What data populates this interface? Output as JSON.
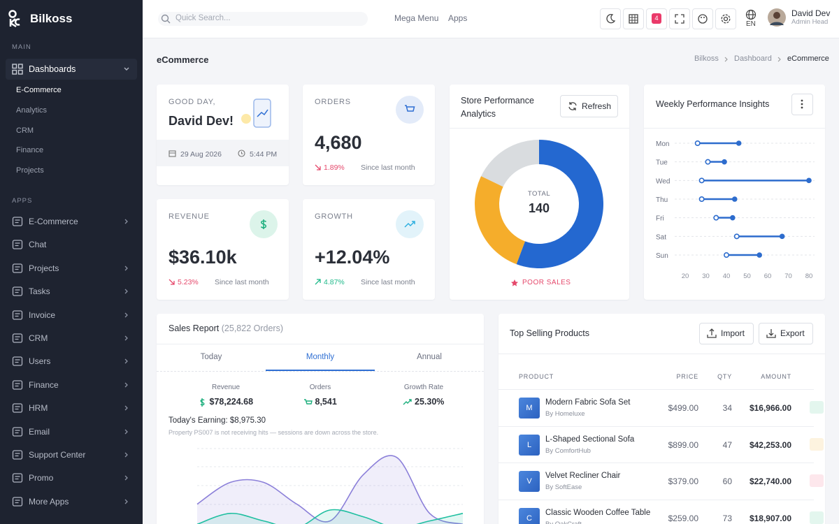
{
  "brand": "Bilkoss",
  "sidebar": {
    "main_label": "MAIN",
    "dashboards": "Dashboards",
    "dashboard_items": [
      "E-Commerce",
      "Analytics",
      "CRM",
      "Finance",
      "Projects"
    ],
    "apps_label": "APPS",
    "apps": [
      "E-Commerce",
      "Chat",
      "Projects",
      "Tasks",
      "Invoice",
      "CRM",
      "Users",
      "Finance",
      "HRM",
      "Email",
      "Support Center",
      "Promo",
      "More Apps"
    ]
  },
  "topbar": {
    "search": "Quick Search...",
    "links": [
      "Mega Menu",
      "Apps"
    ],
    "notifications": "4",
    "language": "EN",
    "user_name": "David Dev",
    "user_role": "Admin Head"
  },
  "page": {
    "title": "eCommerce",
    "breadcrumb": [
      "Bilkoss",
      "Dashboard",
      "eCommerce"
    ]
  },
  "greeting": {
    "salutation": "GOOD DAY,",
    "name": "David Dev!",
    "date": "29 Aug 2026",
    "time": "5:44 PM"
  },
  "stats": [
    {
      "label": "ORDERS",
      "value": "4,680",
      "change": "1.89%",
      "note": "Since last month",
      "trend": "down",
      "color": "#2f6fd3",
      "bg": "#e3ebf9"
    },
    {
      "label": "REVENUE",
      "value": "$36.10k",
      "change": "5.23%",
      "note": "Since last month",
      "trend": "down",
      "color": "#1bae7c",
      "bg": "#dcf4ea"
    },
    {
      "label": "GROWTH",
      "value": "+12.04%",
      "change": "4.87%",
      "note": "Since last month",
      "trend": "up",
      "color": "#2fb0e0",
      "bg": "#e2f3fa"
    }
  ],
  "store_performance": {
    "type": "donut",
    "title": "Store Performance Analytics",
    "button": "Refresh",
    "total_label": "TOTAL",
    "total": 140,
    "status": "POOR SALES",
    "segments": [
      {
        "value": 78,
        "color": "#2468d0"
      },
      {
        "value": 37,
        "color": "#f5ad2b"
      },
      {
        "value": 25,
        "color": "#d9dcdf"
      }
    ]
  },
  "weekly": {
    "type": "dumbbell",
    "title": "Weekly Performance Insights",
    "categories": [
      "Mon",
      "Tue",
      "Wed",
      "Thu",
      "Fri",
      "Sat",
      "Sun"
    ],
    "start": [
      26,
      31,
      28,
      28,
      35,
      45,
      40
    ],
    "end": [
      46,
      39,
      80,
      44,
      43,
      67,
      56
    ],
    "xlim": [
      20,
      80
    ],
    "xticks": [
      20,
      30,
      40,
      50,
      60,
      70,
      80
    ],
    "color": "#2d6ccd"
  },
  "sales_report": {
    "title": "Sales Report",
    "orders": "(25,822 Orders)",
    "tabs": [
      "Today",
      "Monthly",
      "Annual"
    ],
    "active_tab": 1,
    "metrics": [
      {
        "label": "Revenue",
        "value": "$78,224.68"
      },
      {
        "label": "Orders",
        "value": "8,541"
      },
      {
        "label": "Growth Rate",
        "value": "25.30%"
      }
    ],
    "earning": "Today's Earning: $8,975.30",
    "note": "Property PS007 is not receiving hits — sessions are down across the store.",
    "chart": {
      "type": "area",
      "ylim": [
        0,
        100
      ],
      "series": [
        {
          "color": "#8b7fd9",
          "values": [
            32,
            58,
            58,
            32,
            12,
            67,
            88,
            21,
            8
          ]
        },
        {
          "color": "#1fbfa0",
          "values": [
            8,
            21,
            12,
            4,
            25,
            17,
            4,
            12,
            21
          ]
        }
      ]
    }
  },
  "top_products": {
    "title": "Top Selling Products",
    "buttons": [
      "Import",
      "Export"
    ],
    "columns": [
      "PRODUCT",
      "PRICE",
      "QTY",
      "AMOUNT"
    ],
    "rows": [
      {
        "initial": "M",
        "name": "Modern Fabric Sofa Set",
        "vendor": "By Homeluxe",
        "price": "$499.00",
        "qty": "34",
        "amount": "$16,966.00"
      },
      {
        "initial": "L",
        "name": "L-Shaped Sectional Sofa",
        "vendor": "By ComfortHub",
        "price": "$899.00",
        "qty": "47",
        "amount": "$42,253.00"
      },
      {
        "initial": "V",
        "name": "Velvet Recliner Chair",
        "vendor": "By SoftEase",
        "price": "$379.00",
        "qty": "60",
        "amount": "$22,740.00"
      },
      {
        "initial": "C",
        "name": "Classic Wooden Coffee Table",
        "vendor": "By OakCraft",
        "price": "$259.00",
        "qty": "73",
        "amount": "$18,907.00"
      }
    ]
  }
}
